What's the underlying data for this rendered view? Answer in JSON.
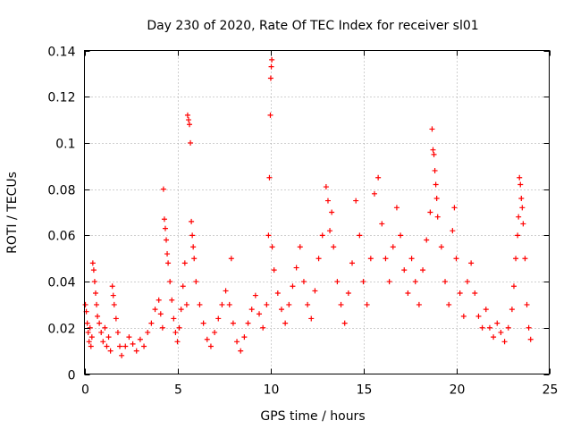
{
  "chart_data": {
    "type": "scatter",
    "title": "Day 230 of 2020, Rate Of TEC Index for receiver sl01",
    "xlabel": "GPS time / hours",
    "ylabel": "ROTI / TECUs",
    "xlim": [
      0,
      25
    ],
    "ylim": [
      0,
      0.14
    ],
    "xticks": [
      0,
      5,
      10,
      15,
      20,
      25
    ],
    "yticks": [
      0,
      0.02,
      0.04,
      0.06,
      0.08,
      0.1,
      0.12,
      0.14
    ],
    "xtick_labels": [
      "0",
      "5",
      "10",
      "15",
      "20",
      "25"
    ],
    "ytick_labels": [
      "0",
      "0.02",
      "0.04",
      "0.06",
      "0.08",
      "0.1",
      "0.12",
      "0.14"
    ],
    "grid": true,
    "marker": "+",
    "color": "#ff0000",
    "series": [
      {
        "name": "ROTI",
        "points": [
          [
            0.05,
            0.03
          ],
          [
            0.1,
            0.027
          ],
          [
            0.15,
            0.022
          ],
          [
            0.2,
            0.018
          ],
          [
            0.25,
            0.014
          ],
          [
            0.3,
            0.02
          ],
          [
            0.35,
            0.012
          ],
          [
            0.4,
            0.016
          ],
          [
            0.45,
            0.048
          ],
          [
            0.5,
            0.045
          ],
          [
            0.55,
            0.04
          ],
          [
            0.6,
            0.035
          ],
          [
            0.65,
            0.03
          ],
          [
            0.7,
            0.025
          ],
          [
            0.8,
            0.022
          ],
          [
            0.9,
            0.018
          ],
          [
            1.0,
            0.014
          ],
          [
            1.1,
            0.02
          ],
          [
            1.2,
            0.012
          ],
          [
            1.3,
            0.016
          ],
          [
            1.4,
            0.01
          ],
          [
            1.5,
            0.038
          ],
          [
            1.55,
            0.034
          ],
          [
            1.6,
            0.03
          ],
          [
            1.7,
            0.024
          ],
          [
            1.8,
            0.018
          ],
          [
            1.9,
            0.012
          ],
          [
            2.0,
            0.008
          ],
          [
            2.2,
            0.012
          ],
          [
            2.4,
            0.016
          ],
          [
            2.6,
            0.013
          ],
          [
            2.8,
            0.01
          ],
          [
            3.0,
            0.015
          ],
          [
            3.2,
            0.012
          ],
          [
            3.4,
            0.018
          ],
          [
            3.6,
            0.022
          ],
          [
            3.8,
            0.028
          ],
          [
            4.0,
            0.032
          ],
          [
            4.1,
            0.026
          ],
          [
            4.2,
            0.02
          ],
          [
            4.25,
            0.08
          ],
          [
            4.3,
            0.067
          ],
          [
            4.35,
            0.063
          ],
          [
            4.4,
            0.058
          ],
          [
            4.45,
            0.052
          ],
          [
            4.5,
            0.048
          ],
          [
            4.6,
            0.04
          ],
          [
            4.7,
            0.032
          ],
          [
            4.8,
            0.024
          ],
          [
            4.9,
            0.018
          ],
          [
            5.0,
            0.014
          ],
          [
            5.1,
            0.02
          ],
          [
            5.2,
            0.028
          ],
          [
            5.3,
            0.038
          ],
          [
            5.4,
            0.048
          ],
          [
            5.5,
            0.03
          ],
          [
            5.55,
            0.112
          ],
          [
            5.6,
            0.11
          ],
          [
            5.65,
            0.108
          ],
          [
            5.7,
            0.1
          ],
          [
            5.75,
            0.066
          ],
          [
            5.8,
            0.06
          ],
          [
            5.85,
            0.055
          ],
          [
            5.9,
            0.05
          ],
          [
            6.0,
            0.04
          ],
          [
            6.2,
            0.03
          ],
          [
            6.4,
            0.022
          ],
          [
            6.6,
            0.015
          ],
          [
            6.8,
            0.012
          ],
          [
            7.0,
            0.018
          ],
          [
            7.2,
            0.024
          ],
          [
            7.4,
            0.03
          ],
          [
            7.6,
            0.036
          ],
          [
            7.8,
            0.03
          ],
          [
            7.9,
            0.05
          ],
          [
            8.0,
            0.022
          ],
          [
            8.2,
            0.014
          ],
          [
            8.4,
            0.01
          ],
          [
            8.6,
            0.016
          ],
          [
            8.8,
            0.022
          ],
          [
            9.0,
            0.028
          ],
          [
            9.2,
            0.034
          ],
          [
            9.4,
            0.026
          ],
          [
            9.6,
            0.02
          ],
          [
            9.8,
            0.03
          ],
          [
            9.9,
            0.06
          ],
          [
            9.95,
            0.085
          ],
          [
            10.0,
            0.112
          ],
          [
            10.02,
            0.128
          ],
          [
            10.05,
            0.133
          ],
          [
            10.08,
            0.136
          ],
          [
            10.1,
            0.055
          ],
          [
            10.2,
            0.045
          ],
          [
            10.4,
            0.035
          ],
          [
            10.6,
            0.028
          ],
          [
            10.8,
            0.022
          ],
          [
            11.0,
            0.03
          ],
          [
            11.2,
            0.038
          ],
          [
            11.4,
            0.046
          ],
          [
            11.6,
            0.055
          ],
          [
            11.8,
            0.04
          ],
          [
            12.0,
            0.03
          ],
          [
            12.2,
            0.024
          ],
          [
            12.4,
            0.036
          ],
          [
            12.6,
            0.05
          ],
          [
            12.8,
            0.06
          ],
          [
            13.0,
            0.081
          ],
          [
            13.1,
            0.075
          ],
          [
            13.2,
            0.062
          ],
          [
            13.3,
            0.07
          ],
          [
            13.4,
            0.055
          ],
          [
            13.6,
            0.04
          ],
          [
            13.8,
            0.03
          ],
          [
            14.0,
            0.022
          ],
          [
            14.2,
            0.035
          ],
          [
            14.4,
            0.048
          ],
          [
            14.6,
            0.075
          ],
          [
            14.8,
            0.06
          ],
          [
            15.0,
            0.04
          ],
          [
            15.2,
            0.03
          ],
          [
            15.4,
            0.05
          ],
          [
            15.6,
            0.078
          ],
          [
            15.8,
            0.085
          ],
          [
            16.0,
            0.065
          ],
          [
            16.2,
            0.05
          ],
          [
            16.4,
            0.04
          ],
          [
            16.6,
            0.055
          ],
          [
            16.8,
            0.072
          ],
          [
            17.0,
            0.06
          ],
          [
            17.2,
            0.045
          ],
          [
            17.4,
            0.035
          ],
          [
            17.6,
            0.05
          ],
          [
            17.8,
            0.04
          ],
          [
            18.0,
            0.03
          ],
          [
            18.2,
            0.045
          ],
          [
            18.4,
            0.058
          ],
          [
            18.6,
            0.07
          ],
          [
            18.7,
            0.106
          ],
          [
            18.75,
            0.097
          ],
          [
            18.8,
            0.095
          ],
          [
            18.85,
            0.088
          ],
          [
            18.9,
            0.082
          ],
          [
            18.95,
            0.076
          ],
          [
            19.0,
            0.068
          ],
          [
            19.2,
            0.055
          ],
          [
            19.4,
            0.04
          ],
          [
            19.6,
            0.03
          ],
          [
            19.8,
            0.062
          ],
          [
            19.9,
            0.072
          ],
          [
            20.0,
            0.05
          ],
          [
            20.2,
            0.035
          ],
          [
            20.4,
            0.025
          ],
          [
            20.6,
            0.04
          ],
          [
            20.8,
            0.048
          ],
          [
            21.0,
            0.035
          ],
          [
            21.2,
            0.025
          ],
          [
            21.4,
            0.02
          ],
          [
            21.6,
            0.028
          ],
          [
            21.8,
            0.02
          ],
          [
            22.0,
            0.016
          ],
          [
            22.2,
            0.022
          ],
          [
            22.4,
            0.018
          ],
          [
            22.6,
            0.014
          ],
          [
            22.8,
            0.02
          ],
          [
            23.0,
            0.028
          ],
          [
            23.1,
            0.038
          ],
          [
            23.2,
            0.05
          ],
          [
            23.3,
            0.06
          ],
          [
            23.35,
            0.068
          ],
          [
            23.4,
            0.085
          ],
          [
            23.45,
            0.082
          ],
          [
            23.5,
            0.076
          ],
          [
            23.55,
            0.072
          ],
          [
            23.6,
            0.065
          ],
          [
            23.7,
            0.05
          ],
          [
            23.8,
            0.03
          ],
          [
            23.9,
            0.02
          ],
          [
            24.0,
            0.015
          ]
        ]
      }
    ]
  }
}
